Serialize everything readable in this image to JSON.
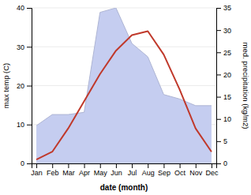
{
  "chart_data": {
    "type": "line",
    "categories": [
      "Jan",
      "Feb",
      "Mar",
      "Apr",
      "May",
      "Jun",
      "Jul",
      "Aug",
      "Sep",
      "Oct",
      "Nov",
      "Dec"
    ],
    "xlabel": "date (month)",
    "ylabel": "max temp (C)",
    "y2label": "med. precipitation (kg/m2)",
    "ylim": [
      0,
      40
    ],
    "yticks": [
      0,
      10,
      20,
      30,
      40
    ],
    "y2lim": [
      0,
      35
    ],
    "y2ticks": [
      0,
      5,
      10,
      15,
      20,
      25,
      30,
      35
    ],
    "grid": true,
    "series": [
      {
        "type": "area",
        "axis": "y2",
        "color": "#c5cdf0",
        "values": [
          8.5,
          11,
          11,
          11.5,
          34,
          35,
          27,
          24,
          15.5,
          14.5,
          13,
          13
        ]
      },
      {
        "type": "line",
        "color": "#c0392b",
        "values": [
          1,
          3,
          9,
          16,
          23,
          29,
          33,
          34,
          28,
          19,
          9,
          3
        ]
      }
    ]
  }
}
